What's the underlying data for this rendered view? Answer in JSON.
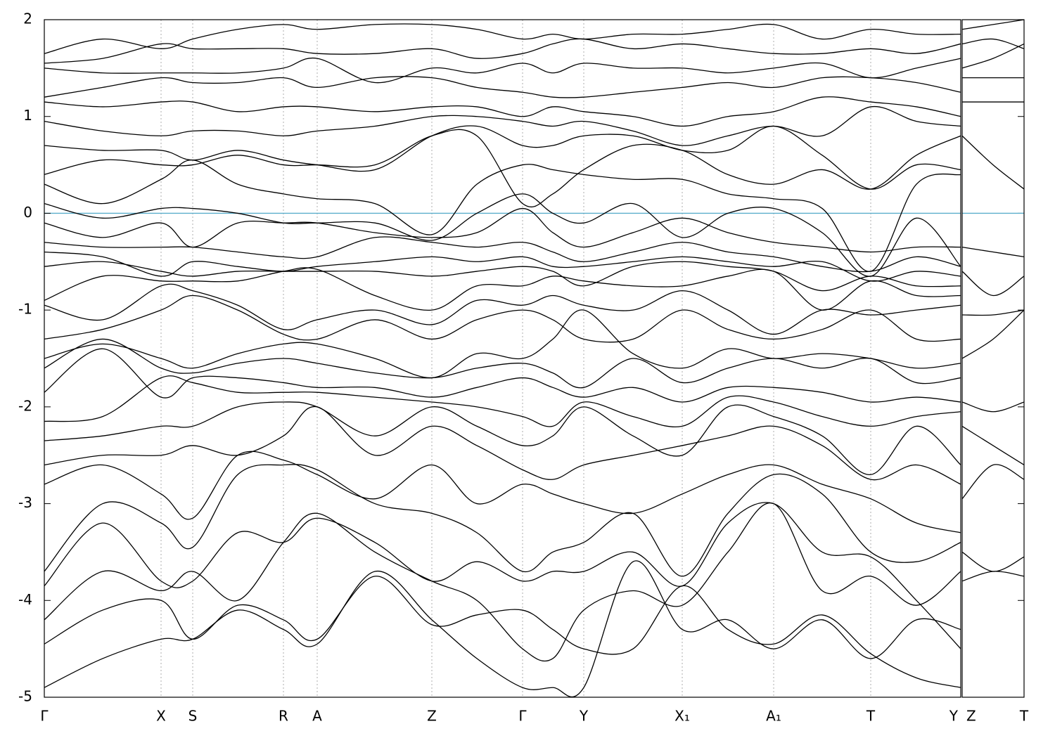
{
  "chart_data": [
    {
      "type": "line",
      "color": "#000000",
      "fermi": {
        "value": 0,
        "color": "#5aaecc"
      },
      "xlim": [
        0,
        1303
      ],
      "ylim": [
        -5,
        2
      ],
      "yticks": [
        -5,
        -4,
        -3,
        -2,
        -1,
        0,
        1,
        2
      ],
      "xticks": [
        {
          "value": 0,
          "label": "Γ"
        },
        {
          "value": 166,
          "label": "X"
        },
        {
          "value": 211,
          "label": "S"
        },
        {
          "value": 340,
          "label": "R"
        },
        {
          "value": 388,
          "label": "A"
        },
        {
          "value": 551,
          "label": "Z"
        },
        {
          "value": 680,
          "label": "Γ"
        },
        {
          "value": 767,
          "label": "Y"
        },
        {
          "value": 907,
          "label": "X₁"
        },
        {
          "value": 1037,
          "label": "A₁"
        },
        {
          "value": 1175,
          "label": "T"
        },
        {
          "value": 1303,
          "label": "Y"
        }
      ],
      "x": [
        0,
        83,
        166,
        211,
        275,
        340,
        388,
        470,
        551,
        615,
        680,
        723,
        767,
        837,
        907,
        972,
        1037,
        1106,
        1175,
        1240,
        1303
      ],
      "series": [
        {
          "values": [
            -4.9,
            -4.6,
            -4.4,
            -4.4,
            -4.1,
            -4.3,
            -4.45,
            -3.7,
            -4.2,
            -4.6,
            -4.9,
            -4.9,
            -4.9,
            -3.6,
            -4.3,
            -4.2,
            -4.5,
            -4.2,
            -4.6,
            -4.2,
            -4.3
          ]
        },
        {
          "values": [
            -4.45,
            -4.1,
            -4.0,
            -4.4,
            -4.05,
            -4.2,
            -4.4,
            -3.75,
            -4.25,
            -4.15,
            -4.1,
            -4.3,
            -4.5,
            -4.5,
            -3.85,
            -4.3,
            -4.45,
            -4.15,
            -4.55,
            -4.8,
            -4.9
          ]
        },
        {
          "values": [
            -4.2,
            -3.7,
            -3.9,
            -3.7,
            -4.0,
            -3.4,
            -3.1,
            -3.5,
            -3.8,
            -4.0,
            -4.5,
            -4.6,
            -4.1,
            -3.9,
            -4.05,
            -3.5,
            -3.0,
            -3.9,
            -3.75,
            -4.05,
            -3.7
          ]
        },
        {
          "values": [
            -3.85,
            -3.2,
            -3.8,
            -3.8,
            -3.3,
            -3.4,
            -3.15,
            -3.4,
            -3.8,
            -3.6,
            -3.8,
            -3.7,
            -3.7,
            -3.5,
            -3.85,
            -3.2,
            -3.0,
            -3.5,
            -3.55,
            -4.0,
            -4.5
          ]
        },
        {
          "values": [
            -3.7,
            -3.0,
            -3.2,
            -3.45,
            -2.7,
            -2.6,
            -2.65,
            -3.0,
            -3.1,
            -3.3,
            -3.7,
            -3.5,
            -3.4,
            -3.1,
            -3.75,
            -3.1,
            -2.7,
            -2.9,
            -3.5,
            -3.6,
            -3.4
          ]
        },
        {
          "values": [
            -2.8,
            -2.6,
            -2.9,
            -3.15,
            -2.5,
            -2.55,
            -2.7,
            -2.95,
            -2.6,
            -3.0,
            -2.8,
            -2.9,
            -3.0,
            -3.1,
            -2.9,
            -2.7,
            -2.6,
            -2.8,
            -2.95,
            -3.2,
            -3.3
          ]
        },
        {
          "values": [
            -2.6,
            -2.5,
            -2.5,
            -2.4,
            -2.5,
            -2.3,
            -2.0,
            -2.5,
            -2.2,
            -2.4,
            -2.65,
            -2.75,
            -2.6,
            -2.5,
            -2.4,
            -2.3,
            -2.2,
            -2.4,
            -2.75,
            -2.6,
            -2.8
          ]
        },
        {
          "values": [
            -2.35,
            -2.3,
            -2.2,
            -2.2,
            -2.0,
            -1.95,
            -2.0,
            -2.3,
            -2.0,
            -2.2,
            -2.4,
            -2.3,
            -2.0,
            -2.3,
            -2.5,
            -2.0,
            -2.1,
            -2.3,
            -2.7,
            -2.2,
            -2.6
          ]
        },
        {
          "values": [
            -2.15,
            -2.1,
            -1.7,
            -1.75,
            -1.85,
            -1.85,
            -1.85,
            -1.9,
            -1.95,
            -2.0,
            -2.1,
            -2.2,
            -1.95,
            -2.1,
            -2.2,
            -1.9,
            -1.95,
            -2.1,
            -2.2,
            -2.1,
            -2.05
          ]
        },
        {
          "values": [
            -1.85,
            -1.4,
            -1.9,
            -1.7,
            -1.7,
            -1.75,
            -1.8,
            -1.8,
            -1.9,
            -1.8,
            -1.7,
            -1.8,
            -1.9,
            -1.8,
            -1.95,
            -1.8,
            -1.8,
            -1.85,
            -1.95,
            -1.9,
            -1.95
          ]
        },
        {
          "values": [
            -1.6,
            -1.3,
            -1.6,
            -1.65,
            -1.55,
            -1.5,
            -1.55,
            -1.65,
            -1.7,
            -1.6,
            -1.55,
            -1.65,
            -1.8,
            -1.5,
            -1.75,
            -1.6,
            -1.5,
            -1.6,
            -1.5,
            -1.75,
            -1.7
          ]
        },
        {
          "values": [
            -1.5,
            -1.35,
            -1.5,
            -1.6,
            -1.45,
            -1.35,
            -1.35,
            -1.5,
            -1.7,
            -1.45,
            -1.5,
            -1.3,
            -1.0,
            -1.45,
            -1.6,
            -1.4,
            -1.5,
            -1.45,
            -1.5,
            -1.6,
            -1.55
          ]
        },
        {
          "values": [
            -1.3,
            -1.2,
            -1.0,
            -0.85,
            -1.0,
            -1.25,
            -1.3,
            -1.1,
            -1.3,
            -1.1,
            -1.0,
            -1.1,
            -1.3,
            -1.3,
            -1.0,
            -1.2,
            -1.3,
            -1.2,
            -1.0,
            -1.3,
            -1.3
          ]
        },
        {
          "values": [
            -0.95,
            -1.1,
            -0.75,
            -0.8,
            -0.95,
            -1.2,
            -1.1,
            -1.0,
            -1.15,
            -0.9,
            -0.95,
            -0.85,
            -0.95,
            -1.0,
            -0.8,
            -1.0,
            -1.25,
            -1.0,
            -1.05,
            -1.0,
            -0.95
          ]
        },
        {
          "values": [
            -0.9,
            -0.65,
            -0.7,
            -0.7,
            -0.7,
            -0.6,
            -0.58,
            -0.85,
            -1.0,
            -0.75,
            -0.75,
            -0.65,
            -0.7,
            -0.75,
            -0.75,
            -0.65,
            -0.6,
            -1.0,
            -0.7,
            -0.85,
            -0.85
          ]
        },
        {
          "values": [
            -0.55,
            -0.5,
            -0.6,
            -0.65,
            -0.6,
            -0.6,
            -0.6,
            -0.6,
            -0.65,
            -0.6,
            -0.55,
            -0.6,
            -0.75,
            -0.55,
            -0.5,
            -0.55,
            -0.6,
            -0.8,
            -0.65,
            -0.75,
            -0.75
          ]
        },
        {
          "values": [
            -0.4,
            -0.45,
            -0.65,
            -0.5,
            -0.55,
            -0.6,
            -0.55,
            -0.5,
            -0.45,
            -0.5,
            -0.45,
            -0.55,
            -0.55,
            -0.5,
            -0.45,
            -0.5,
            -0.55,
            -0.5,
            -0.7,
            -0.6,
            -0.65
          ]
        },
        {
          "values": [
            -0.3,
            -0.35,
            -0.35,
            -0.35,
            -0.4,
            -0.45,
            -0.45,
            -0.25,
            -0.3,
            -0.35,
            -0.3,
            -0.4,
            -0.5,
            -0.4,
            -0.3,
            -0.4,
            -0.45,
            -0.55,
            -0.6,
            -0.45,
            -0.55
          ]
        },
        {
          "values": [
            -0.1,
            -0.25,
            -0.1,
            -0.35,
            -0.1,
            -0.1,
            -0.1,
            -0.2,
            -0.25,
            -0.2,
            0.05,
            -0.2,
            -0.35,
            -0.2,
            -0.05,
            -0.2,
            -0.3,
            -0.35,
            -0.4,
            -0.35,
            -0.35
          ]
        },
        {
          "values": [
            0.1,
            -0.05,
            0.05,
            0.05,
            0.0,
            -0.1,
            -0.1,
            -0.1,
            -0.28,
            0.0,
            0.2,
            0.0,
            -0.1,
            0.1,
            -0.25,
            0.0,
            0.05,
            -0.2,
            -0.65,
            -0.05,
            -0.55
          ]
        },
        {
          "values": [
            0.3,
            0.1,
            0.35,
            0.55,
            0.3,
            0.2,
            0.15,
            0.1,
            -0.22,
            0.3,
            0.5,
            0.45,
            0.4,
            0.35,
            0.35,
            0.2,
            0.15,
            0.05,
            -0.6,
            0.3,
            0.4
          ]
        },
        {
          "values": [
            0.4,
            0.55,
            0.5,
            0.5,
            0.6,
            0.5,
            0.5,
            0.5,
            0.8,
            0.8,
            0.1,
            0.2,
            0.45,
            0.7,
            0.65,
            0.4,
            0.3,
            0.45,
            0.25,
            0.6,
            0.8
          ]
        },
        {
          "values": [
            0.7,
            0.65,
            0.65,
            0.55,
            0.65,
            0.55,
            0.5,
            0.45,
            0.8,
            0.9,
            0.7,
            0.7,
            0.8,
            0.8,
            0.65,
            0.65,
            0.9,
            0.6,
            0.25,
            0.5,
            0.45
          ]
        },
        {
          "values": [
            0.95,
            0.85,
            0.8,
            0.85,
            0.85,
            0.8,
            0.85,
            0.9,
            1.0,
            1.0,
            0.95,
            0.9,
            0.95,
            0.85,
            0.7,
            0.8,
            0.9,
            0.8,
            1.1,
            0.95,
            0.9
          ]
        },
        {
          "values": [
            1.15,
            1.1,
            1.15,
            1.15,
            1.05,
            1.1,
            1.1,
            1.05,
            1.1,
            1.1,
            1.0,
            1.1,
            1.05,
            1.0,
            0.9,
            1.0,
            1.05,
            1.2,
            1.15,
            1.1,
            1.0
          ]
        },
        {
          "values": [
            1.2,
            1.3,
            1.4,
            1.35,
            1.35,
            1.4,
            1.3,
            1.4,
            1.4,
            1.3,
            1.25,
            1.2,
            1.2,
            1.25,
            1.3,
            1.35,
            1.3,
            1.4,
            1.4,
            1.35,
            1.25
          ]
        },
        {
          "values": [
            1.5,
            1.45,
            1.45,
            1.45,
            1.45,
            1.5,
            1.6,
            1.35,
            1.5,
            1.45,
            1.55,
            1.45,
            1.55,
            1.5,
            1.5,
            1.45,
            1.5,
            1.55,
            1.4,
            1.5,
            1.6
          ]
        },
        {
          "values": [
            1.55,
            1.6,
            1.75,
            1.7,
            1.7,
            1.7,
            1.65,
            1.65,
            1.7,
            1.6,
            1.65,
            1.75,
            1.8,
            1.7,
            1.75,
            1.7,
            1.65,
            1.65,
            1.7,
            1.65,
            1.75
          ]
        },
        {
          "values": [
            1.65,
            1.8,
            1.7,
            1.8,
            1.9,
            1.95,
            1.9,
            1.95,
            1.95,
            1.9,
            1.8,
            1.85,
            1.8,
            1.85,
            1.85,
            1.9,
            1.95,
            1.8,
            1.9,
            1.85,
            1.85
          ]
        }
      ]
    },
    {
      "type": "line",
      "color": "#000000",
      "fermi": {
        "value": 0,
        "color": "#5aaecc"
      },
      "xlim": [
        1303,
        1393
      ],
      "ylim": [
        -5,
        2
      ],
      "xticks": [
        {
          "value": 1303,
          "label": "Z"
        },
        {
          "value": 1393,
          "label": "T"
        }
      ],
      "x": [
        1303,
        1348,
        1393
      ],
      "series": [
        {
          "values": [
            -3.8,
            -3.7,
            -3.75
          ]
        },
        {
          "values": [
            -3.5,
            -3.7,
            -3.55
          ]
        },
        {
          "values": [
            -2.95,
            -2.6,
            -2.75
          ]
        },
        {
          "values": [
            -2.2,
            -2.4,
            -2.6
          ]
        },
        {
          "values": [
            -1.95,
            -2.05,
            -1.95
          ]
        },
        {
          "values": [
            -1.5,
            -1.3,
            -1.0
          ]
        },
        {
          "values": [
            -1.05,
            -1.05,
            -1.0
          ]
        },
        {
          "values": [
            -0.6,
            -0.85,
            -0.65
          ]
        },
        {
          "values": [
            -0.35,
            -0.4,
            -0.45
          ]
        },
        {
          "values": [
            0.8,
            0.5,
            0.25
          ]
        },
        {
          "values": [
            1.15,
            1.15,
            1.15
          ]
        },
        {
          "values": [
            1.4,
            1.4,
            1.4
          ]
        },
        {
          "values": [
            1.5,
            1.6,
            1.75
          ]
        },
        {
          "values": [
            1.75,
            1.8,
            1.7
          ]
        },
        {
          "values": [
            1.9,
            1.95,
            2.0
          ]
        }
      ]
    }
  ]
}
